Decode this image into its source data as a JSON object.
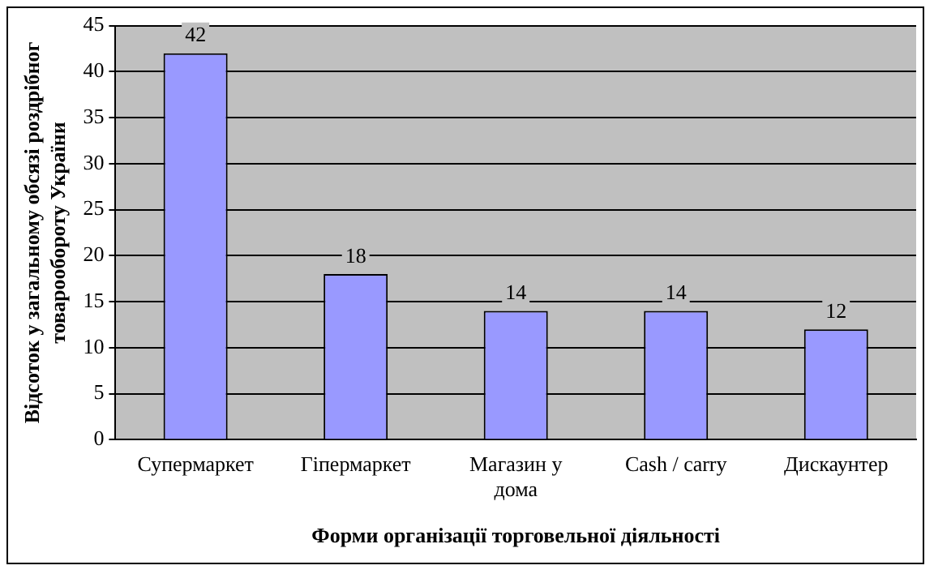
{
  "chart_data": {
    "type": "bar",
    "xlabel": "Форми організації торговельної діяльності",
    "ylabel": "Відсоток у загальному обсязі роздрібног товарообороту України",
    "categories": [
      "Супермаркет",
      "Гіпермаркет",
      "Магазин у дома",
      "Cash / carry",
      "Дискаунтер"
    ],
    "values": [
      42,
      18,
      14,
      14,
      12
    ],
    "color": "#9999ff",
    "data_labels": true,
    "ylim": [
      0,
      45
    ],
    "yticks": [
      0,
      5,
      10,
      15,
      20,
      25,
      30,
      35,
      40,
      45
    ],
    "grid": "y",
    "legend": false
  }
}
